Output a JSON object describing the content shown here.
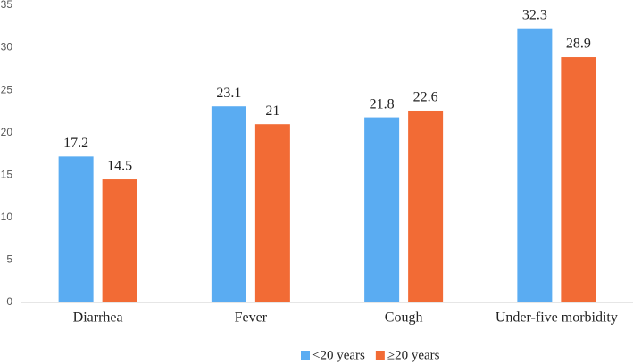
{
  "chart_data": {
    "type": "bar",
    "categories": [
      "Diarrhea",
      "Fever",
      "Cough",
      "Under-five morbidity"
    ],
    "series": [
      {
        "name": "<20 years",
        "color": "#5aacf2",
        "values": [
          17.2,
          23.1,
          21.8,
          32.3
        ]
      },
      {
        "name": "≥20 years",
        "color": "#f26b35",
        "values": [
          14.5,
          21,
          22.6,
          28.9
        ]
      }
    ],
    "ylim": [
      0,
      35
    ],
    "yticks": [
      0,
      5,
      10,
      15,
      20,
      25,
      30,
      35
    ],
    "grid": false,
    "legend": "bottom",
    "data_labels": true
  }
}
